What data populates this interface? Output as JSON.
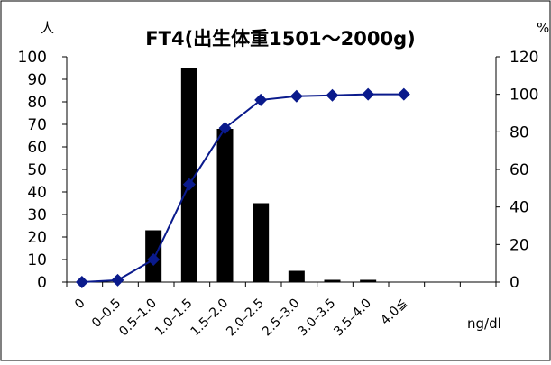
{
  "chart_data": {
    "type": "bar+line",
    "title": "FT4(出生体重1501～2000g)",
    "left_axis_unit": "人",
    "right_axis_unit": "%",
    "x_unit": "ng/dl",
    "categories": [
      "0",
      "0–0.5",
      "0.5–1.0",
      "1.0–1.5",
      "1.5–2.0",
      "2.0–2.5",
      "2.5–3.0",
      "3.0–3.5",
      "3.5–4.0",
      "4.0≦"
    ],
    "left_ylim": [
      0,
      100
    ],
    "left_ticks": [
      "100",
      "90",
      "80",
      "70",
      "60",
      "50",
      "40",
      "30",
      "20",
      "10",
      "0"
    ],
    "right_ylim": [
      0,
      120
    ],
    "right_ticks": [
      "120",
      "100",
      "80",
      "60",
      "40",
      "20",
      "0"
    ],
    "grid": false,
    "series": [
      {
        "type": "bar",
        "axis": "left",
        "color": "#000000",
        "values": [
          0,
          0,
          23,
          95,
          68,
          35,
          5,
          1,
          1,
          0
        ]
      },
      {
        "type": "line",
        "axis": "right",
        "color": "#0a1a8c",
        "marker": "diamond",
        "values": [
          0,
          1,
          12,
          52,
          82,
          97,
          99,
          99.5,
          100,
          100
        ]
      }
    ]
  }
}
